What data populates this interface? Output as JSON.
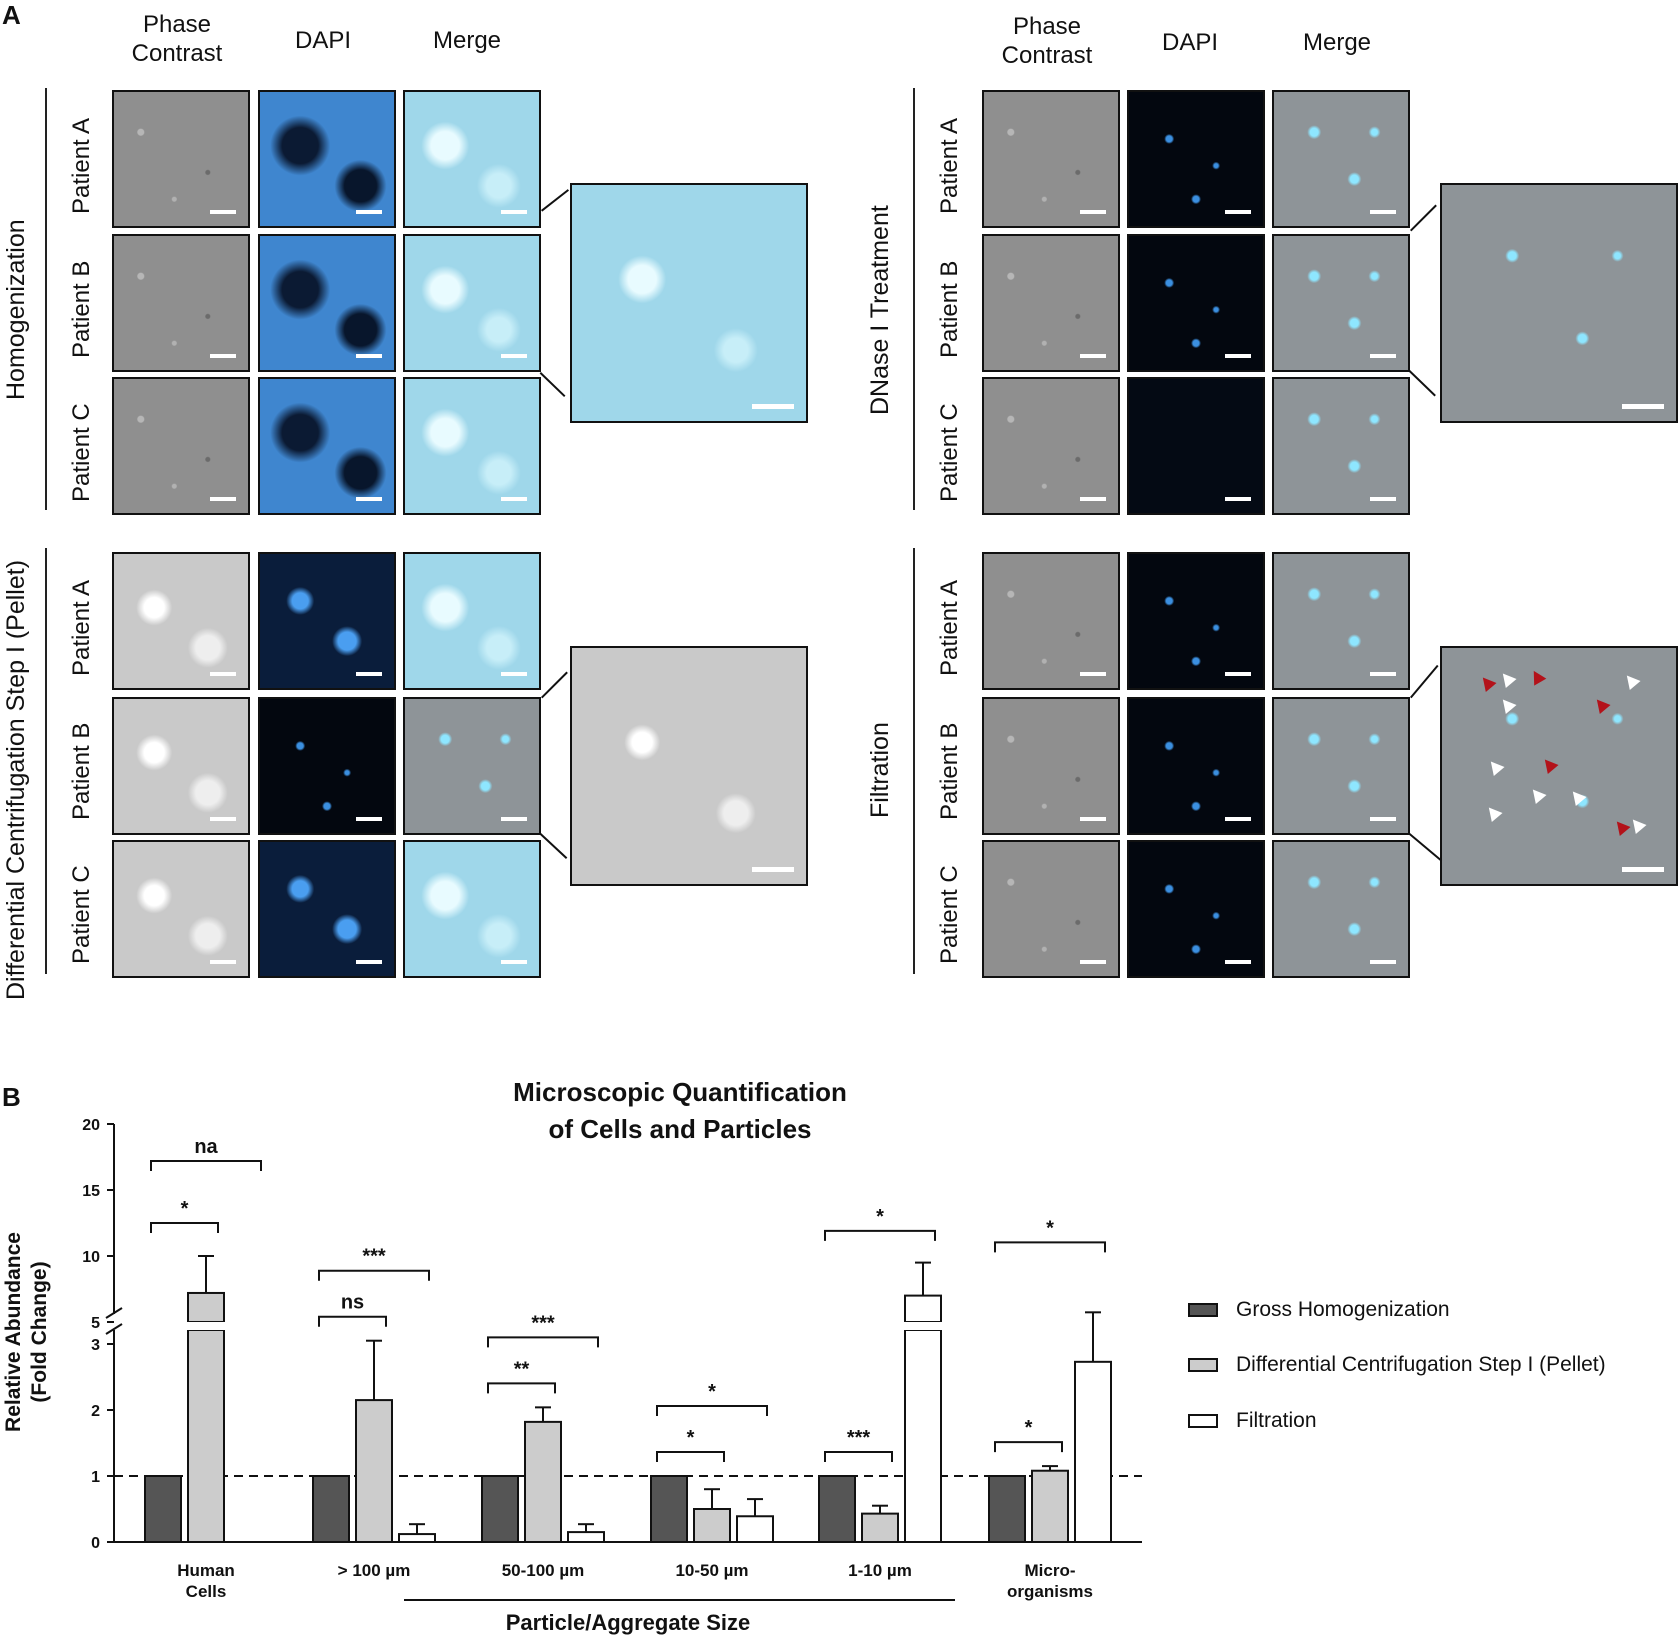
{
  "panelA": {
    "letter": "A",
    "columns": {
      "phase": "Phase\nContrast",
      "dapi": "DAPI",
      "merge": "Merge"
    },
    "patients": [
      "Patient A",
      "Patient B",
      "Patient C"
    ],
    "groups": {
      "homogenization": "Homogenization",
      "dnase": "DNase I Treatment",
      "centrifugation": "Differential Centrifugation Step I (Pellet)",
      "filtration": "Filtration"
    }
  },
  "panelB": {
    "letter": "B"
  },
  "chart_data": {
    "type": "bar",
    "title": "Microscopic Quantification\nof Cells and Particles",
    "ylabel": "Relative Abundance\n(Fold Change)",
    "xlabel": "Particle/Aggregate Size",
    "categories": [
      "Human\nCells",
      "> 100 µm",
      "50-100 µm",
      "10-50 µm",
      "1-10 µm",
      "Micro-\norganisms"
    ],
    "series": [
      {
        "name": "Gross Homogenization",
        "values": [
          1,
          1,
          1,
          1,
          1,
          1
        ],
        "errors": [
          0,
          0,
          0,
          0,
          0,
          0
        ],
        "color": "#555555"
      },
      {
        "name": "Differential Centrifugation Step I (Pellet)",
        "values": [
          7.2,
          2.15,
          1.82,
          0.5,
          0.43,
          1.08
        ],
        "errors": [
          2.8,
          0.9,
          0.22,
          0.3,
          0.12,
          0.07
        ],
        "color": "#cccccc"
      },
      {
        "name": "Filtration",
        "values": [
          null,
          0.12,
          0.15,
          0.39,
          7.0,
          2.73
        ],
        "errors": [
          null,
          0.15,
          0.12,
          0.26,
          2.5,
          0.75
        ],
        "color": "#ffffff"
      }
    ],
    "yticks_lower": [
      "0",
      "1",
      "2",
      "3"
    ],
    "yticks_upper": [
      "5",
      "10",
      "15",
      "20"
    ],
    "ylim_lower": [
      0,
      3.5
    ],
    "ylim_upper": [
      5,
      20
    ],
    "axis_break": true,
    "reference_line": 1,
    "significance": [
      {
        "label": "*",
        "from_series": 0,
        "to_series": 1,
        "category": 0
      },
      {
        "label": "na",
        "from_series": 0,
        "to_series": 2,
        "category": 0
      },
      {
        "label": "ns",
        "from_series": 0,
        "to_series": 1,
        "category": 1
      },
      {
        "label": "***",
        "from_series": 0,
        "to_series": 2,
        "category": 1
      },
      {
        "label": "**",
        "from_series": 0,
        "to_series": 1,
        "category": 2
      },
      {
        "label": "***",
        "from_series": 0,
        "to_series": 2,
        "category": 2
      },
      {
        "label": "*",
        "from_series": 0,
        "to_series": 1,
        "category": 3
      },
      {
        "label": "*",
        "from_series": 0,
        "to_series": 2,
        "category": 3
      },
      {
        "label": "***",
        "from_series": 0,
        "to_series": 1,
        "category": 4
      },
      {
        "label": "*",
        "from_series": 0,
        "to_series": 2,
        "category": 4
      },
      {
        "label": "*",
        "from_series": 0,
        "to_series": 1,
        "category": 5
      },
      {
        "label": "*",
        "from_series": 0,
        "to_series": 2,
        "category": 5
      }
    ],
    "legend_position": "right"
  }
}
